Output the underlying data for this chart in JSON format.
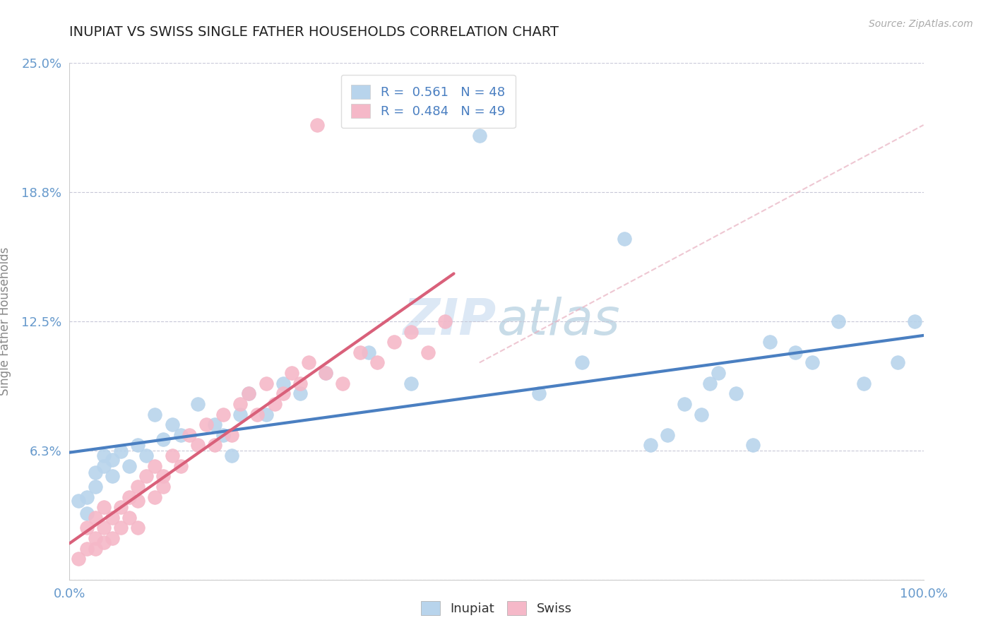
{
  "title": "INUPIAT VS SWISS SINGLE FATHER HOUSEHOLDS CORRELATION CHART",
  "source": "Source: ZipAtlas.com",
  "ylabel": "Single Father Households",
  "xlim": [
    0,
    100
  ],
  "ylim": [
    0,
    25
  ],
  "ytick_vals": [
    0,
    6.25,
    12.5,
    18.75,
    25.0
  ],
  "ytick_labels": [
    "",
    "6.3%",
    "12.5%",
    "18.8%",
    "25.0%"
  ],
  "xtick_labels": [
    "0.0%",
    "100.0%"
  ],
  "legend_entries": [
    {
      "label": "R =  0.561   N = 48",
      "color": "#b8d4ec"
    },
    {
      "label": "R =  0.484   N = 49",
      "color": "#f5b8c8"
    }
  ],
  "inupiat_color": "#b8d4ec",
  "swiss_color": "#f5b8c8",
  "inupiat_line_color": "#4a7fc1",
  "swiss_line_color": "#d9607a",
  "swiss_dash_color": "#e8a0b0",
  "title_color": "#222222",
  "axis_color": "#6699cc",
  "watermark_color": "#dce8f5",
  "background_color": "#ffffff",
  "inupiat_x": [
    1,
    2,
    2,
    3,
    3,
    4,
    4,
    5,
    5,
    6,
    7,
    8,
    9,
    10,
    11,
    12,
    13,
    15,
    17,
    18,
    19,
    20,
    21,
    23,
    25,
    27,
    30,
    35,
    40,
    48,
    55,
    60,
    65,
    68,
    70,
    72,
    74,
    75,
    76,
    78,
    80,
    82,
    85,
    87,
    90,
    93,
    97,
    99
  ],
  "inupiat_y": [
    3.8,
    4.0,
    3.2,
    5.2,
    4.5,
    6.0,
    5.5,
    5.8,
    5.0,
    6.2,
    5.5,
    6.5,
    6.0,
    8.0,
    6.8,
    7.5,
    7.0,
    8.5,
    7.5,
    7.0,
    6.0,
    8.0,
    9.0,
    8.0,
    9.5,
    9.0,
    10.0,
    11.0,
    9.5,
    21.5,
    9.0,
    10.5,
    16.5,
    6.5,
    7.0,
    8.5,
    8.0,
    9.5,
    10.0,
    9.0,
    6.5,
    11.5,
    11.0,
    10.5,
    12.5,
    9.5,
    10.5,
    12.5
  ],
  "swiss_x": [
    1,
    2,
    2,
    3,
    3,
    3,
    4,
    4,
    4,
    5,
    5,
    6,
    6,
    7,
    7,
    8,
    8,
    8,
    9,
    10,
    10,
    11,
    11,
    12,
    13,
    14,
    15,
    16,
    17,
    18,
    19,
    20,
    21,
    22,
    23,
    24,
    25,
    26,
    27,
    28,
    29,
    30,
    32,
    34,
    36,
    38,
    40,
    42,
    44
  ],
  "swiss_y": [
    1.0,
    1.5,
    2.5,
    2.0,
    3.0,
    1.5,
    2.5,
    3.5,
    1.8,
    3.0,
    2.0,
    3.5,
    2.5,
    4.0,
    3.0,
    4.5,
    3.8,
    2.5,
    5.0,
    4.0,
    5.5,
    5.0,
    4.5,
    6.0,
    5.5,
    7.0,
    6.5,
    7.5,
    6.5,
    8.0,
    7.0,
    8.5,
    9.0,
    8.0,
    9.5,
    8.5,
    9.0,
    10.0,
    9.5,
    10.5,
    22.0,
    10.0,
    9.5,
    11.0,
    10.5,
    11.5,
    12.0,
    11.0,
    12.5
  ]
}
